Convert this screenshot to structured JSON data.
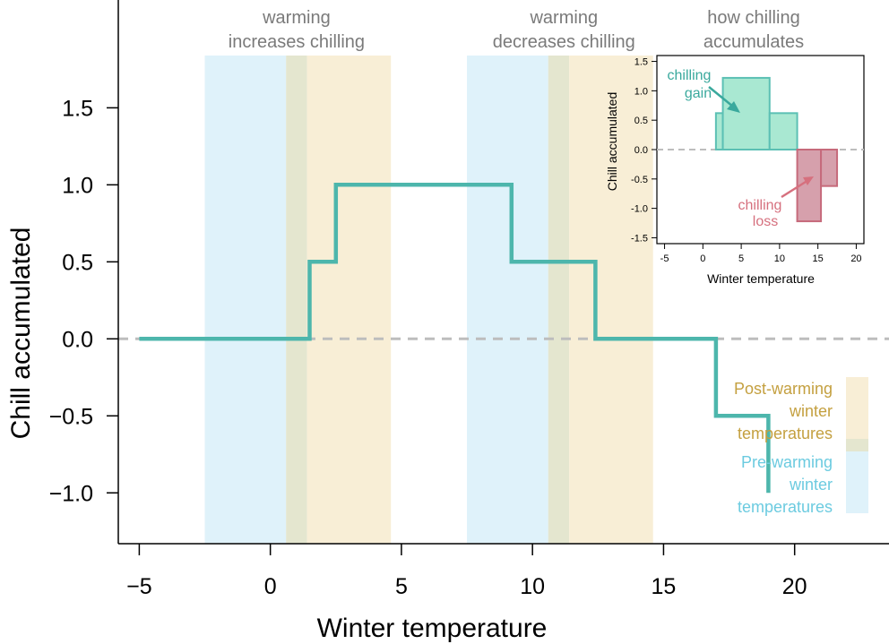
{
  "chart_data": [
    {
      "type": "line",
      "xlabel": "Winter temperature",
      "ylabel": "Chill accumulated",
      "xlim": [
        -5.8,
        23.6
      ],
      "ylim": [
        -1.33,
        2.2
      ],
      "x_ticks": [
        -5,
        0,
        5,
        10,
        15,
        20
      ],
      "x_tick_labels": [
        "−5",
        "0",
        "5",
        "10",
        "15",
        "20"
      ],
      "y_ticks": [
        -1.0,
        -0.5,
        0.0,
        0.5,
        1.0,
        1.5
      ],
      "y_tick_labels": [
        "−1.0",
        "−0.5",
        "0.0",
        "0.5",
        "1.0",
        "1.5"
      ],
      "reference_line": {
        "y": 0,
        "style": "dashed",
        "color": "#bdbdbd"
      },
      "series": [
        {
          "color": "#4db6ac",
          "x": [
            -5,
            1.5,
            1.5,
            2.5,
            2.5,
            9.2,
            9.2,
            12.4,
            12.4,
            17.0,
            17.0,
            19.0,
            19.0
          ],
          "y": [
            0,
            0,
            0.5,
            0.5,
            1.0,
            1.0,
            0.5,
            0.5,
            0,
            0,
            -0.5,
            -0.5,
            -1.0
          ]
        }
      ],
      "bands": [
        {
          "group": "pre",
          "x0": -2.5,
          "x1": 0.6,
          "color": "#dff2fa"
        },
        {
          "group": "overlap",
          "x0": 0.6,
          "x1": 1.4,
          "color": "#e4e6cf"
        },
        {
          "group": "post",
          "x0": 1.4,
          "x1": 4.6,
          "color": "#f8eed6"
        },
        {
          "group": "pre",
          "x0": 7.5,
          "x1": 10.6,
          "color": "#dff2fa"
        },
        {
          "group": "overlap",
          "x0": 10.6,
          "x1": 11.4,
          "color": "#e4e6cf"
        },
        {
          "group": "post",
          "x0": 11.4,
          "x1": 14.6,
          "color": "#f8eed6"
        }
      ],
      "region_labels": [
        {
          "x": 1.0,
          "lines": [
            "warming",
            "increases chilling"
          ]
        },
        {
          "x": 11.2,
          "lines": [
            "warming",
            "decreases chilling"
          ]
        }
      ],
      "legend": {
        "position": "bottom-right",
        "entries": [
          {
            "lines": [
              "Post-warming",
              "winter",
              "temperatures"
            ],
            "color": "#c4a040",
            "swatch": "#f8eed6"
          },
          {
            "lines": [
              "Pre-warming",
              "winter",
              "temperatures"
            ],
            "color": "#6ccbe0",
            "swatch": "#dff2fa"
          }
        ],
        "overlap_swatch": "#e4e6cf"
      }
    },
    {
      "type": "bar",
      "title_lines": [
        "how chilling",
        "accumulates"
      ],
      "xlabel": "Winter temperature",
      "ylabel": "Chill accumulated",
      "xlim": [
        -6,
        21
      ],
      "ylim": [
        -1.6,
        1.6
      ],
      "x_ticks": [
        -5,
        0,
        5,
        10,
        15,
        20
      ],
      "x_tick_labels": [
        "-5",
        "0",
        "5",
        "10",
        "15",
        "20"
      ],
      "y_ticks": [
        -1.5,
        -1.0,
        -0.5,
        0.0,
        0.5,
        1.0,
        1.5
      ],
      "y_tick_labels": [
        "-1.5",
        "-1.0",
        "-0.5",
        "0.0",
        "0.5",
        "1.0",
        "1.5"
      ],
      "bars": [
        {
          "group": "gain",
          "x0": 1.7,
          "x1": 2.6,
          "value": 0.62
        },
        {
          "group": "gain",
          "x0": 2.6,
          "x1": 8.7,
          "value": 1.22
        },
        {
          "group": "gain",
          "x0": 8.7,
          "x1": 12.3,
          "value": 0.62
        },
        {
          "group": "loss",
          "x0": 12.3,
          "x1": 15.4,
          "value": -1.22
        },
        {
          "group": "loss",
          "x0": 15.4,
          "x1": 17.5,
          "value": -0.62
        }
      ],
      "annotations": [
        {
          "lines": [
            "chilling",
            "gain"
          ],
          "color": "#3aa99d"
        },
        {
          "lines": [
            "chilling",
            "loss"
          ],
          "color": "#d6707e"
        }
      ],
      "colors": {
        "gain_fill": "#a9e8d2",
        "gain_stroke": "#5cc0b4",
        "loss_fill": "#d6a0ac",
        "loss_stroke": "#c66a7b"
      }
    }
  ]
}
